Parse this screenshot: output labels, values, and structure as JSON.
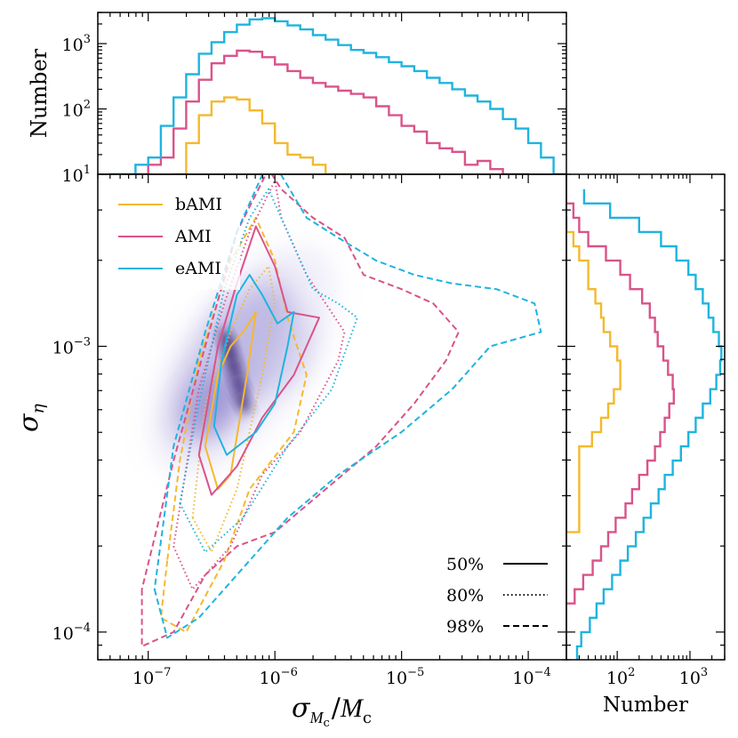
{
  "chart_data": [
    {
      "panel": "top-histogram",
      "type": "step-histogram",
      "xscale": "log",
      "yscale": "log",
      "xlim": [
        4e-08,
        0.0002
      ],
      "ylim": [
        10,
        3000
      ],
      "ylabel": "Number",
      "y_tick_labels": [
        "10^1",
        "10^2",
        "10^3"
      ],
      "x_edges_log10": [
        -7.4,
        -7.3,
        -7.2,
        -7.1,
        -7.0,
        -6.9,
        -6.8,
        -6.7,
        -6.6,
        -6.5,
        -6.4,
        -6.3,
        -6.2,
        -6.1,
        -6.0,
        -5.9,
        -5.8,
        -5.7,
        -5.6,
        -5.5,
        -5.4,
        -5.3,
        -5.2,
        -5.1,
        -5.0,
        -4.9,
        -4.8,
        -4.7,
        -4.6,
        -4.5,
        -4.4,
        -4.3,
        -4.2,
        -4.1,
        -4.0,
        -3.9,
        -3.8,
        -3.7
      ],
      "series": [
        {
          "name": "bAMI",
          "color": "#f4b92d",
          "counts": [
            0,
            0,
            0,
            0,
            0,
            0,
            6,
            30,
            80,
            130,
            150,
            140,
            95,
            60,
            30,
            20,
            18,
            14,
            10,
            9,
            9,
            0,
            0,
            0,
            0,
            0,
            0,
            0,
            0,
            0,
            0,
            0,
            0,
            0,
            0,
            0,
            0
          ]
        },
        {
          "name": "AMI",
          "color": "#d9538a",
          "counts": [
            0,
            0,
            0,
            10,
            14,
            18,
            50,
            130,
            280,
            500,
            650,
            780,
            750,
            620,
            480,
            380,
            300,
            250,
            220,
            190,
            170,
            150,
            110,
            80,
            55,
            45,
            30,
            25,
            22,
            14,
            16,
            12,
            10,
            10,
            0,
            0,
            0
          ]
        },
        {
          "name": "eAMI",
          "color": "#1eb4df",
          "counts": [
            0,
            10,
            10,
            14,
            18,
            55,
            150,
            340,
            700,
            1050,
            1500,
            1950,
            2350,
            2450,
            2200,
            1900,
            1650,
            1350,
            1150,
            950,
            800,
            720,
            620,
            520,
            450,
            380,
            300,
            250,
            200,
            160,
            130,
            100,
            70,
            50,
            30,
            18,
            10
          ]
        }
      ]
    },
    {
      "panel": "right-histogram",
      "type": "step-histogram",
      "orientation": "horizontal",
      "xscale": "log",
      "yscale": "log",
      "xlim": [
        20,
        3000
      ],
      "xlabel": "Number",
      "x_tick_labels": [
        "10^2",
        "10^3"
      ],
      "y_edges_log10": [
        -4.1,
        -4.05,
        -4.0,
        -3.95,
        -3.9,
        -3.85,
        -3.8,
        -3.75,
        -3.7,
        -3.65,
        -3.6,
        -3.55,
        -3.5,
        -3.45,
        -3.4,
        -3.35,
        -3.3,
        -3.25,
        -3.2,
        -3.15,
        -3.1,
        -3.05,
        -3.0,
        -2.95,
        -2.9,
        -2.85,
        -2.8,
        -2.75,
        -2.7,
        -2.65,
        -2.6,
        -2.55,
        -2.5,
        -2.45
      ],
      "series": [
        {
          "name": "bAMI",
          "color": "#f4b92d",
          "counts": [
            0,
            0,
            0,
            0,
            0,
            0,
            0,
            0,
            0,
            30,
            30,
            30,
            30,
            30,
            30,
            45,
            60,
            75,
            90,
            110,
            110,
            100,
            80,
            65,
            60,
            50,
            40,
            40,
            30,
            25,
            20,
            0,
            0
          ]
        },
        {
          "name": "AMI",
          "color": "#d9538a",
          "counts": [
            0,
            0,
            0,
            0,
            26,
            34,
            46,
            60,
            75,
            95,
            130,
            160,
            200,
            260,
            330,
            390,
            450,
            520,
            600,
            580,
            500,
            430,
            360,
            330,
            280,
            220,
            150,
            110,
            70,
            40,
            30,
            25,
            0
          ]
        },
        {
          "name": "eAMI",
          "color": "#1eb4df",
          "counts": [
            28,
            32,
            42,
            52,
            65,
            85,
            110,
            140,
            180,
            230,
            290,
            370,
            450,
            580,
            750,
            950,
            1200,
            1500,
            1900,
            2300,
            2600,
            2700,
            2500,
            2100,
            1800,
            1500,
            1200,
            950,
            650,
            400,
            200,
            80,
            35
          ]
        }
      ]
    },
    {
      "panel": "main-scatter-density",
      "type": "contour",
      "xscale": "log",
      "yscale": "log",
      "xlim": [
        4e-08,
        0.0002
      ],
      "ylim": [
        8e-05,
        0.004
      ],
      "xlabel": "σ_Mc / M_c",
      "ylabel": "σ_η",
      "x_tick_labels": [
        "10^-7",
        "10^-6",
        "10^-5",
        "10^-4"
      ],
      "y_tick_labels": [
        "10^-4",
        "10^-3"
      ],
      "density_peak": {
        "x": 5e-07,
        "y": 0.0008
      },
      "contour_levels": [
        "50%",
        "80%",
        "98%"
      ],
      "contours": [
        {
          "series": "bAMI",
          "level": "50%",
          "polygon_log10": [
            [
              -6.55,
              -3.35
            ],
            [
              -6.45,
              -3.5
            ],
            [
              -6.35,
              -3.45
            ],
            [
              -6.22,
              -3.1
            ],
            [
              -6.15,
              -2.88
            ],
            [
              -6.25,
              -2.95
            ],
            [
              -6.35,
              -3.0
            ],
            [
              -6.45,
              -3.1
            ]
          ]
        },
        {
          "series": "bAMI",
          "level": "80%",
          "polygon_log10": [
            [
              -6.65,
              -3.6
            ],
            [
              -6.5,
              -3.72
            ],
            [
              -6.3,
              -3.5
            ],
            [
              -6.1,
              -3.1
            ],
            [
              -6.0,
              -2.85
            ],
            [
              -6.05,
              -2.72
            ],
            [
              -6.2,
              -2.8
            ],
            [
              -6.35,
              -2.95
            ],
            [
              -6.55,
              -3.2
            ]
          ]
        },
        {
          "series": "bAMI",
          "level": "98%",
          "polygon_log10": [
            [
              -6.85,
              -3.75
            ],
            [
              -6.9,
              -3.95
            ],
            [
              -6.7,
              -4.0
            ],
            [
              -6.4,
              -3.75
            ],
            [
              -6.2,
              -3.5
            ],
            [
              -5.85,
              -3.3
            ],
            [
              -5.75,
              -3.1
            ],
            [
              -5.9,
              -2.9
            ],
            [
              -6.0,
              -2.7
            ],
            [
              -6.15,
              -2.55
            ],
            [
              -6.35,
              -2.7
            ],
            [
              -6.6,
              -3.05
            ],
            [
              -6.75,
              -3.4
            ]
          ]
        },
        {
          "series": "AMI",
          "level": "50%",
          "polygon_log10": [
            [
              -6.6,
              -3.38
            ],
            [
              -6.5,
              -3.52
            ],
            [
              -6.3,
              -3.42
            ],
            [
              -6.1,
              -3.25
            ],
            [
              -5.85,
              -3.1
            ],
            [
              -5.65,
              -2.9
            ],
            [
              -5.9,
              -2.88
            ],
            [
              -6.0,
              -2.72
            ],
            [
              -6.15,
              -2.58
            ],
            [
              -6.3,
              -2.78
            ],
            [
              -6.45,
              -3.0
            ]
          ]
        },
        {
          "series": "AMI",
          "level": "80%",
          "polygon_log10": [
            [
              -6.8,
              -3.7
            ],
            [
              -6.65,
              -3.85
            ],
            [
              -6.35,
              -3.7
            ],
            [
              -6.1,
              -3.45
            ],
            [
              -5.8,
              -3.3
            ],
            [
              -5.5,
              -3.05
            ],
            [
              -5.45,
              -2.95
            ],
            [
              -5.6,
              -2.85
            ],
            [
              -5.75,
              -2.75
            ],
            [
              -5.95,
              -2.55
            ],
            [
              -6.0,
              -2.42
            ],
            [
              -6.2,
              -2.6
            ],
            [
              -6.4,
              -2.85
            ],
            [
              -6.6,
              -3.15
            ]
          ]
        },
        {
          "series": "AMI",
          "level": "98%",
          "polygon_log10": [
            [
              -7.05,
              -3.85
            ],
            [
              -7.05,
              -4.05
            ],
            [
              -6.8,
              -4.0
            ],
            [
              -6.55,
              -3.8
            ],
            [
              -6.3,
              -3.7
            ],
            [
              -6.0,
              -3.65
            ],
            [
              -5.6,
              -3.5
            ],
            [
              -5.2,
              -3.35
            ],
            [
              -4.9,
              -3.2
            ],
            [
              -4.65,
              -3.05
            ],
            [
              -4.55,
              -2.95
            ],
            [
              -4.75,
              -2.85
            ],
            [
              -5.0,
              -2.8
            ],
            [
              -5.3,
              -2.75
            ],
            [
              -5.45,
              -2.62
            ],
            [
              -5.7,
              -2.55
            ],
            [
              -5.95,
              -2.45
            ],
            [
              -6.05,
              -2.38
            ],
            [
              -6.3,
              -2.6
            ],
            [
              -6.55,
              -3.0
            ],
            [
              -6.8,
              -3.4
            ]
          ]
        },
        {
          "series": "eAMI",
          "level": "50%",
          "polygon_log10": [
            [
              -6.48,
              -3.28
            ],
            [
              -6.38,
              -3.38
            ],
            [
              -6.15,
              -3.3
            ],
            [
              -6.0,
              -3.2
            ],
            [
              -5.9,
              -3.0
            ],
            [
              -5.85,
              -2.88
            ],
            [
              -5.98,
              -2.92
            ],
            [
              -6.1,
              -2.82
            ],
            [
              -6.2,
              -2.75
            ],
            [
              -6.3,
              -2.82
            ],
            [
              -6.42,
              -3.05
            ]
          ]
        },
        {
          "series": "eAMI",
          "level": "80%",
          "polygon_log10": [
            [
              -6.75,
              -3.55
            ],
            [
              -6.55,
              -3.72
            ],
            [
              -6.25,
              -3.6
            ],
            [
              -5.9,
              -3.35
            ],
            [
              -5.55,
              -3.15
            ],
            [
              -5.35,
              -2.9
            ],
            [
              -5.5,
              -2.85
            ],
            [
              -5.7,
              -2.8
            ],
            [
              -5.95,
              -2.55
            ],
            [
              -6.05,
              -2.45
            ],
            [
              -6.2,
              -2.55
            ],
            [
              -6.4,
              -2.8
            ],
            [
              -6.6,
              -3.2
            ]
          ]
        },
        {
          "series": "eAMI",
          "level": "98%",
          "polygon_log10": [
            [
              -6.95,
              -3.85
            ],
            [
              -6.85,
              -4.02
            ],
            [
              -6.6,
              -3.95
            ],
            [
              -6.3,
              -3.8
            ],
            [
              -5.9,
              -3.6
            ],
            [
              -5.5,
              -3.45
            ],
            [
              -5.0,
              -3.3
            ],
            [
              -4.6,
              -3.15
            ],
            [
              -4.3,
              -3.0
            ],
            [
              -3.9,
              -2.95
            ],
            [
              -3.95,
              -2.85
            ],
            [
              -4.25,
              -2.8
            ],
            [
              -4.6,
              -2.78
            ],
            [
              -4.9,
              -2.75
            ],
            [
              -5.2,
              -2.7
            ],
            [
              -5.5,
              -2.62
            ],
            [
              -5.75,
              -2.55
            ],
            [
              -5.95,
              -2.4
            ],
            [
              -6.05,
              -2.35
            ],
            [
              -6.3,
              -2.6
            ],
            [
              -6.55,
              -2.95
            ],
            [
              -6.8,
              -3.35
            ]
          ]
        }
      ]
    }
  ],
  "legend": {
    "position": "upper-left",
    "items": [
      {
        "label": "bAMI",
        "color": "#f4b92d"
      },
      {
        "label": "AMI",
        "color": "#d9538a"
      },
      {
        "label": "eAMI",
        "color": "#1eb4df"
      }
    ]
  },
  "level_legend": {
    "position": "lower-right",
    "items": [
      {
        "label": "50%",
        "style": "solid"
      },
      {
        "label": "80%",
        "style": "dotted"
      },
      {
        "label": "98%",
        "style": "dashed"
      }
    ]
  },
  "labels": {
    "top_ylabel": "Number",
    "right_xlabel": "Number",
    "main_ylabel": "σ",
    "main_ylabel_sub": "η",
    "main_xlabel_sigma": "σ",
    "main_xlabel_sub": "M",
    "main_xlabel_sub2": "c",
    "main_xlabel_M": "M",
    "main_xlabel_c": "c"
  }
}
